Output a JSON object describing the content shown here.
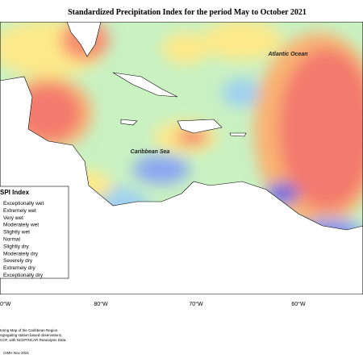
{
  "header": {
    "title": "Standardized Precipitation Index for the period May to October 2021"
  },
  "map_labels": {
    "ocean": "Atlantic Ocean",
    "sea": "Caribbean Sea"
  },
  "legend": {
    "title": "SPI Index",
    "items": [
      "Exceptionally wet",
      "Extremely wet",
      "Very wet",
      "Moderately wet",
      "Slightly wet",
      "Normal",
      "Slightly dry",
      "Moderately dry",
      "Severely dry",
      "Extremely dry",
      "Exceptionally dry"
    ]
  },
  "longitude_labels": [
    "0°W",
    "80°W",
    "70°W",
    "60°W"
  ],
  "footer": {
    "lines": [
      "toring Map of the Caribbean Region.",
      "ngregating station based observations,",
      "COF, with NCEP/NCAR Reanalysis Data."
    ],
    "credit": "CIMH Nov 2021"
  }
}
